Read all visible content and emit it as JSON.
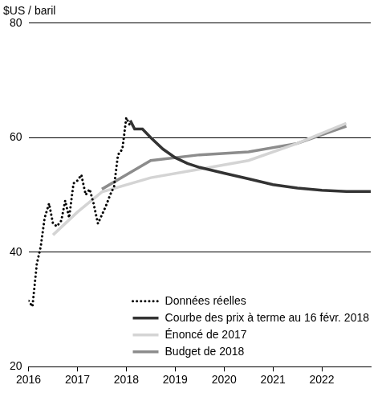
{
  "chart_data": {
    "type": "line",
    "y_label": "$US / baril",
    "xlim": [
      2016,
      2023
    ],
    "xticks": [
      2016,
      2017,
      2018,
      2019,
      2020,
      2021,
      2022
    ],
    "ylim": [
      20,
      80
    ],
    "yticks": [
      20,
      40,
      60,
      80
    ],
    "grid": true,
    "legend": "lower right",
    "series": [
      {
        "name": "Données réelles",
        "color": "#000000",
        "line_style": "dotted",
        "x": [
          2016.0,
          2016.08,
          2016.17,
          2016.25,
          2016.33,
          2016.42,
          2016.5,
          2016.58,
          2016.67,
          2016.75,
          2016.83,
          2016.92,
          2017.0,
          2017.08,
          2017.17,
          2017.25,
          2017.33,
          2017.42,
          2017.5,
          2017.58,
          2017.67,
          2017.75,
          2017.83,
          2017.92,
          2018.0,
          2018.08
        ],
        "values": [
          31.5,
          30.5,
          38,
          41,
          46,
          48.5,
          45,
          44.5,
          45.5,
          49,
          46,
          52,
          52.5,
          53.5,
          50,
          51,
          48.5,
          45,
          46.5,
          48,
          50,
          51.5,
          57,
          58,
          63.5,
          62
        ]
      },
      {
        "name": "Courbe des prix à terme au 16 févr. 2018",
        "color": "#333333",
        "line_style": "solid",
        "x": [
          2018.08,
          2018.17,
          2018.33,
          2018.5,
          2018.75,
          2019.0,
          2019.25,
          2019.5,
          2020.0,
          2020.5,
          2021.0,
          2021.5,
          2022.0,
          2022.5,
          2023.0
        ],
        "values": [
          63,
          61.5,
          61.5,
          60,
          58,
          56.5,
          55.5,
          54.8,
          53.8,
          52.8,
          51.8,
          51.2,
          50.8,
          50.6,
          50.6
        ]
      },
      {
        "name": "Énoncé de 2017",
        "color": "#d4d4d4",
        "line_style": "solid",
        "x": [
          2016.5,
          2017.0,
          2017.5,
          2018.5,
          2019.5,
          2020.5,
          2021.5,
          2022.5
        ],
        "values": [
          43,
          47,
          50.5,
          53,
          54.5,
          56,
          59,
          62.5
        ]
      },
      {
        "name": "Budget de 2018",
        "color": "#8c8c8c",
        "line_style": "solid",
        "x": [
          2017.5,
          2018.0,
          2018.5,
          2019.5,
          2020.5,
          2021.5,
          2022.5
        ],
        "values": [
          51,
          53.5,
          56,
          57,
          57.5,
          59,
          62
        ]
      }
    ]
  }
}
